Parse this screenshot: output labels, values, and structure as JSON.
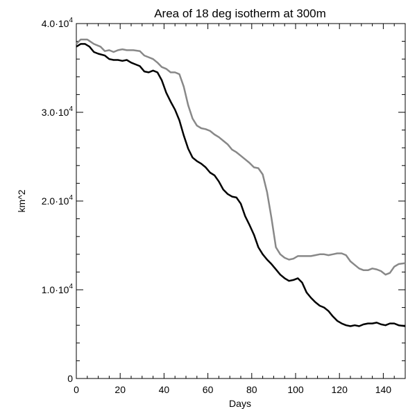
{
  "chart_data": {
    "type": "line",
    "title": "Area of 18 deg isotherm at 300m",
    "xlabel": "Days",
    "ylabel": "km^2",
    "xlim": [
      0,
      150
    ],
    "ylim": [
      0,
      40000
    ],
    "x_ticks": [
      {
        "value": 0,
        "label": "0"
      },
      {
        "value": 20,
        "label": "20"
      },
      {
        "value": 40,
        "label": "40"
      },
      {
        "value": 60,
        "label": "60"
      },
      {
        "value": 80,
        "label": "80"
      },
      {
        "value": 100,
        "label": "100"
      },
      {
        "value": 120,
        "label": "120"
      },
      {
        "value": 140,
        "label": "140"
      }
    ],
    "y_ticks": [
      {
        "value": 0,
        "mantissa": "0",
        "exponent": ""
      },
      {
        "value": 10000,
        "mantissa": "1.0·10",
        "exponent": "4"
      },
      {
        "value": 20000,
        "mantissa": "2.0·10",
        "exponent": "4"
      },
      {
        "value": 30000,
        "mantissa": "3.0·10",
        "exponent": "4"
      },
      {
        "value": 40000,
        "mantissa": "4.0·10",
        "exponent": "4"
      }
    ],
    "grid": false,
    "series": [
      {
        "color": "#888888",
        "x": [
          0,
          2,
          5,
          8,
          11,
          13,
          15,
          17,
          19,
          21,
          23,
          26,
          29,
          31,
          33,
          35,
          37,
          39,
          41,
          43,
          45,
          47,
          49,
          51,
          53,
          55,
          57,
          59,
          61,
          63,
          65,
          67,
          69,
          71,
          73,
          75,
          77,
          79,
          81,
          83,
          85,
          87,
          89,
          91,
          93,
          95,
          97,
          99,
          101,
          103,
          105,
          107,
          109,
          111,
          113,
          115,
          117,
          119,
          121,
          123,
          125,
          127,
          129,
          131,
          133,
          135,
          137,
          139,
          141,
          143,
          145,
          147,
          150
        ],
        "values": [
          37700,
          38200,
          38200,
          37700,
          37400,
          36900,
          37000,
          36800,
          37000,
          37100,
          37000,
          37000,
          36900,
          36400,
          36200,
          36000,
          35600,
          35100,
          34900,
          34500,
          34500,
          34300,
          32900,
          30800,
          29300,
          28500,
          28200,
          28100,
          27900,
          27500,
          27200,
          26800,
          26400,
          25800,
          25500,
          25100,
          24700,
          24300,
          23800,
          23700,
          23000,
          21000,
          18100,
          14800,
          14000,
          13600,
          13400,
          13500,
          13800,
          13800,
          13800,
          13800,
          13900,
          14000,
          14000,
          13900,
          14000,
          14100,
          14100,
          13900,
          13200,
          12800,
          12400,
          12200,
          12200,
          12400,
          12300,
          12100,
          11700,
          11900,
          12600,
          12900,
          13000
        ]
      },
      {
        "color": "#000000",
        "x": [
          0,
          2,
          4,
          6,
          8,
          10,
          13,
          15,
          17,
          19,
          21,
          23,
          25,
          27,
          29,
          31,
          33,
          35,
          37,
          39,
          41,
          43,
          45,
          47,
          49,
          51,
          53,
          55,
          57,
          59,
          61,
          63,
          65,
          67,
          69,
          71,
          73,
          75,
          77,
          79,
          81,
          83,
          85,
          87,
          89,
          91,
          93,
          95,
          97,
          99,
          101,
          103,
          105,
          107,
          109,
          111,
          113,
          115,
          117,
          119,
          121,
          123,
          125,
          127,
          129,
          131,
          133,
          135,
          137,
          139,
          141,
          143,
          145,
          147,
          150
        ],
        "values": [
          37400,
          37700,
          37700,
          37400,
          36800,
          36600,
          36400,
          36000,
          35900,
          35900,
          35800,
          35900,
          35600,
          35400,
          35200,
          34600,
          34500,
          34700,
          34500,
          33600,
          32200,
          31200,
          30300,
          29100,
          27400,
          25900,
          24900,
          24500,
          24200,
          23800,
          23200,
          22900,
          22200,
          21300,
          20800,
          20500,
          20400,
          19700,
          18300,
          17300,
          16200,
          14800,
          14000,
          13400,
          12900,
          12300,
          11700,
          11300,
          11000,
          11100,
          11300,
          10800,
          9700,
          9100,
          8600,
          8200,
          8000,
          7600,
          7000,
          6500,
          6200,
          6000,
          5900,
          6000,
          5900,
          6100,
          6200,
          6200,
          6300,
          6100,
          6000,
          6200,
          6200,
          6000,
          5900
        ]
      }
    ]
  }
}
